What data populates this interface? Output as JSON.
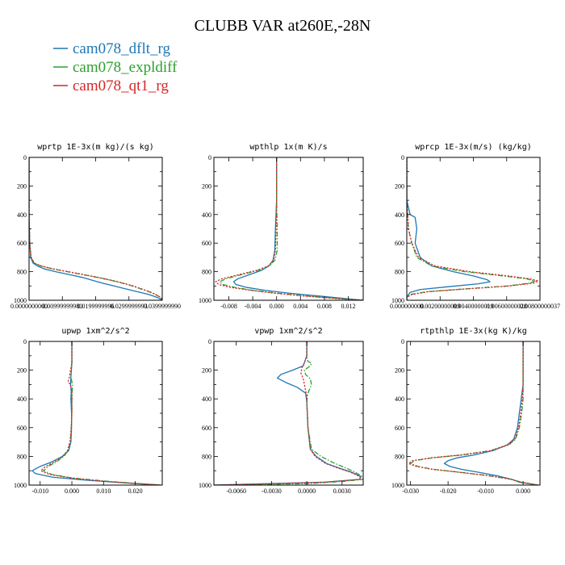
{
  "title": "CLUBB VAR at260E,-28N",
  "legend": [
    {
      "label": "cam078_dflt_rg",
      "color": "#1f77b4",
      "dash": "solid"
    },
    {
      "label": "cam078_expldiff",
      "color": "#2ca02c",
      "dash": "dashdot"
    },
    {
      "label": "cam078_qt1_rg",
      "color": "#d62728",
      "dash": "dotted"
    }
  ],
  "chart_data": [
    {
      "type": "line",
      "title": "wprtp  1E-3x(m kg)/(s kg)",
      "xlim": [
        0.0,
        0.04
      ],
      "ylim": [
        0,
        1000
      ],
      "y_inverted": true,
      "xticks": [
        0.0,
        0.01,
        0.02,
        0.03,
        0.04
      ],
      "xtick_labels": [
        "0.0000000000",
        "0.00999999980",
        "0.0199999996",
        "0.0299999993",
        "0.0399999990"
      ],
      "yticks": [
        0,
        200,
        400,
        600,
        800,
        1000
      ],
      "ytick_labels": [
        "0",
        "200",
        "400",
        "600",
        "800",
        "1000"
      ],
      "series": [
        {
          "y": [
            0,
            400,
            600,
            700,
            740,
            760,
            780,
            800,
            820,
            840,
            860,
            880,
            900,
            920,
            940,
            960,
            980,
            1000
          ],
          "x": [
            0.0,
            0.0,
            0.0002,
            0.0005,
            0.0012,
            0.0025,
            0.0045,
            0.008,
            0.012,
            0.016,
            0.019,
            0.022,
            0.0255,
            0.029,
            0.0325,
            0.036,
            0.0385,
            0.04
          ]
        },
        {
          "y": [
            0,
            400,
            600,
            700,
            740,
            760,
            780,
            800,
            820,
            840,
            860,
            880,
            900,
            920,
            940,
            960,
            980,
            1000
          ],
          "x": [
            0.0,
            0.0,
            0.0002,
            0.0006,
            0.0015,
            0.0035,
            0.007,
            0.0115,
            0.016,
            0.0205,
            0.0245,
            0.028,
            0.031,
            0.0335,
            0.036,
            0.038,
            0.0395,
            0.04
          ]
        },
        {
          "y": [
            0,
            400,
            600,
            700,
            740,
            760,
            780,
            800,
            820,
            840,
            860,
            880,
            900,
            920,
            940,
            960,
            980,
            1000
          ],
          "x": [
            0.0,
            0.0,
            0.0002,
            0.0006,
            0.0016,
            0.0037,
            0.0072,
            0.0118,
            0.0163,
            0.0208,
            0.0248,
            0.0283,
            0.0313,
            0.0338,
            0.0362,
            0.0381,
            0.0395,
            0.04
          ]
        }
      ]
    },
    {
      "type": "line",
      "title": "wpthlp  1x(m K)/s",
      "xlim": [
        -0.0105,
        0.0145
      ],
      "ylim": [
        0,
        1000
      ],
      "y_inverted": true,
      "xticks": [
        -0.008,
        -0.004,
        0.0,
        0.004,
        0.008,
        0.012
      ],
      "xtick_labels": [
        "-0.008",
        "-0.004",
        "0.000",
        "0.004",
        "0.008",
        "0.012"
      ],
      "yticks": [
        0,
        200,
        400,
        600,
        800,
        1000
      ],
      "ytick_labels": [
        "0",
        "200",
        "400",
        "600",
        "800",
        "1000"
      ],
      "series": [
        {
          "y": [
            0,
            300,
            500,
            650,
            720,
            760,
            790,
            820,
            850,
            870,
            890,
            910,
            930,
            950,
            970,
            990,
            1000
          ],
          "x": [
            0.0,
            0.0,
            -0.0002,
            -0.0003,
            -0.0006,
            -0.0013,
            -0.0025,
            -0.0045,
            -0.0065,
            -0.0072,
            -0.0068,
            -0.005,
            -0.002,
            0.002,
            0.007,
            0.012,
            0.0145
          ]
        },
        {
          "y": [
            0,
            300,
            500,
            650,
            720,
            760,
            790,
            820,
            850,
            870,
            890,
            910,
            930,
            950,
            970,
            990,
            1000
          ],
          "x": [
            0.0,
            0.0,
            0.0001,
            0.0001,
            -0.0003,
            -0.0012,
            -0.003,
            -0.0058,
            -0.0085,
            -0.0095,
            -0.009,
            -0.007,
            -0.004,
            0.0,
            0.005,
            0.011,
            0.0145
          ]
        },
        {
          "y": [
            0,
            300,
            500,
            650,
            720,
            760,
            790,
            820,
            850,
            870,
            890,
            910,
            930,
            950,
            970,
            990,
            1000
          ],
          "x": [
            0.0,
            0.0,
            -0.0001,
            -0.0002,
            -0.0005,
            -0.0014,
            -0.0033,
            -0.0062,
            -0.0092,
            -0.0102,
            -0.0097,
            -0.0077,
            -0.0045,
            -0.0005,
            0.0045,
            0.0105,
            0.0145
          ]
        }
      ]
    },
    {
      "type": "line",
      "title": "wprcp  1E-3x(m/s) (kg/kg)",
      "xlim": [
        0.0,
        0.008
      ],
      "ylim": [
        0,
        1000
      ],
      "y_inverted": true,
      "xticks": [
        0.0,
        0.002,
        0.004,
        0.006,
        0.008
      ],
      "xtick_labels": [
        "0.000000000",
        "0.00200000009",
        "0.00400000019",
        "0.00600000028",
        "0.00800000037"
      ],
      "yticks": [
        0,
        200,
        400,
        600,
        800,
        1000
      ],
      "ytick_labels": [
        "0",
        "200",
        "400",
        "600",
        "800",
        "1000"
      ],
      "series": [
        {
          "y": [
            0,
            300,
            400,
            420,
            500,
            600,
            700,
            760,
            800,
            830,
            855,
            870,
            885,
            905,
            925,
            945,
            960,
            980,
            1000
          ],
          "x": [
            0.0,
            0.0,
            0.0002,
            0.0005,
            0.0006,
            0.0005,
            0.0008,
            0.0015,
            0.0028,
            0.004,
            0.0048,
            0.005,
            0.0043,
            0.0025,
            0.0008,
            0.0002,
            0.0001,
            0.0,
            0.0
          ]
        },
        {
          "y": [
            0,
            300,
            500,
            600,
            700,
            760,
            800,
            830,
            850,
            865,
            880,
            900,
            920,
            940,
            960,
            980,
            1000
          ],
          "x": [
            0.0,
            0.0,
            0.0001,
            0.0003,
            0.0006,
            0.0015,
            0.0035,
            0.0058,
            0.0072,
            0.0077,
            0.0074,
            0.006,
            0.0035,
            0.0012,
            0.0002,
            0.0,
            0.0
          ]
        },
        {
          "y": [
            0,
            300,
            500,
            600,
            700,
            760,
            800,
            830,
            850,
            865,
            880,
            900,
            920,
            940,
            960,
            980,
            1000
          ],
          "x": [
            0.0,
            0.0,
            0.0001,
            0.0003,
            0.0007,
            0.0017,
            0.0038,
            0.0061,
            0.0074,
            0.0079,
            0.0076,
            0.0062,
            0.0037,
            0.0013,
            0.0003,
            0.0,
            0.0
          ]
        }
      ]
    },
    {
      "type": "line",
      "title": "upwp  1xm^2/s^2",
      "xlim": [
        -0.0135,
        0.0285
      ],
      "ylim": [
        0,
        1000
      ],
      "y_inverted": true,
      "xticks": [
        -0.01,
        0.0,
        0.01,
        0.02
      ],
      "xtick_labels": [
        "-0.010",
        "0.000",
        "0.010",
        "0.020"
      ],
      "yticks": [
        0,
        200,
        400,
        600,
        800,
        1000
      ],
      "ytick_labels": [
        "0",
        "200",
        "400",
        "600",
        "800",
        "1000"
      ],
      "series": [
        {
          "y": [
            0,
            150,
            250,
            300,
            350,
            400,
            450,
            500,
            600,
            700,
            760,
            800,
            840,
            870,
            900,
            920,
            945,
            965,
            985,
            1000
          ],
          "x": [
            0.0,
            0.0,
            -0.0003,
            -0.0004,
            -0.0002,
            -0.0003,
            -0.0002,
            -0.0001,
            -0.0001,
            -0.0003,
            -0.001,
            -0.003,
            -0.0065,
            -0.01,
            -0.0125,
            -0.0115,
            -0.006,
            0.004,
            0.017,
            0.028
          ]
        },
        {
          "y": [
            0,
            150,
            200,
            250,
            300,
            350,
            400,
            450,
            500,
            600,
            700,
            760,
            800,
            840,
            870,
            900,
            925,
            950,
            975,
            1000
          ],
          "x": [
            0.0,
            0.0,
            -0.0002,
            -0.0003,
            0.0002,
            0.0001,
            0.0,
            0.0,
            0.0,
            -0.0002,
            -0.0005,
            -0.0012,
            -0.0025,
            -0.005,
            -0.0075,
            -0.009,
            -0.0065,
            0.0,
            0.012,
            0.028
          ]
        },
        {
          "y": [
            0,
            150,
            250,
            280,
            300,
            350,
            400,
            450,
            500,
            600,
            700,
            760,
            800,
            840,
            870,
            900,
            925,
            950,
            975,
            1000
          ],
          "x": [
            0.0,
            0.0,
            -0.0008,
            -0.0012,
            -0.0005,
            0.0,
            0.0,
            0.0,
            0.0,
            -0.0002,
            -0.0006,
            -0.0014,
            -0.0028,
            -0.0056,
            -0.0083,
            -0.0098,
            -0.0072,
            -0.0005,
            0.011,
            0.028
          ]
        }
      ]
    },
    {
      "type": "line",
      "title": "vpwp  1xm^2/s^2",
      "xlim": [
        -0.0079,
        0.0048
      ],
      "ylim": [
        0,
        1000
      ],
      "y_inverted": true,
      "xticks": [
        -0.006,
        -0.003,
        0.0,
        0.003
      ],
      "xtick_labels": [
        "-0.0060",
        "-0.0030",
        "0.0000",
        "0.0030"
      ],
      "yticks": [
        0,
        200,
        400,
        600,
        800,
        1000
      ],
      "ytick_labels": [
        "0",
        "200",
        "400",
        "600",
        "800",
        "1000"
      ],
      "series": [
        {
          "y": [
            0,
            100,
            170,
            200,
            230,
            255,
            285,
            320,
            360,
            420,
            600,
            750,
            800,
            850,
            880,
            910,
            940,
            960,
            980,
            1000
          ],
          "x": [
            0.0,
            0.0,
            -0.0003,
            -0.0012,
            -0.0022,
            -0.0025,
            -0.0018,
            -0.0008,
            -0.0001,
            0.0,
            0.0001,
            0.0003,
            0.0008,
            0.0017,
            0.0027,
            0.0038,
            0.0046,
            0.0045,
            0.0015,
            -0.0079
          ]
        },
        {
          "y": [
            0,
            100,
            140,
            150,
            170,
            200,
            230,
            260,
            300,
            360,
            420,
            600,
            750,
            800,
            850,
            880,
            910,
            940,
            960,
            975,
            990,
            1000
          ],
          "x": [
            0.0,
            0.0,
            0.0001,
            0.0004,
            0.0003,
            -0.0002,
            -0.0001,
            0.0003,
            0.0004,
            0.0001,
            0.0,
            0.0001,
            0.0004,
            0.0012,
            0.0024,
            0.0033,
            0.0041,
            0.0047,
            0.0048,
            0.003,
            0.0,
            -0.0079
          ]
        },
        {
          "y": [
            0,
            100,
            150,
            180,
            220,
            260,
            300,
            340,
            380,
            420,
            600,
            750,
            800,
            850,
            880,
            910,
            940,
            960,
            980,
            1000
          ],
          "x": [
            0.0,
            0.0,
            -0.0002,
            -0.0004,
            -0.0005,
            -0.0003,
            -0.0002,
            -0.0001,
            0.0,
            0.0,
            0.0001,
            0.0003,
            0.0007,
            0.0016,
            0.0026,
            0.0037,
            0.0045,
            0.0046,
            0.0015,
            -0.0079
          ]
        }
      ]
    },
    {
      "type": "line",
      "title": "rtpthlp  1E-3x(kg K)/kg",
      "xlim": [
        -0.031,
        0.0045
      ],
      "ylim": [
        0,
        1000
      ],
      "y_inverted": true,
      "xticks": [
        -0.03,
        -0.02,
        -0.01,
        0.0
      ],
      "xtick_labels": [
        "-0.030",
        "-0.020",
        "-0.010",
        "0.000"
      ],
      "yticks": [
        0,
        200,
        400,
        600,
        800,
        1000
      ],
      "ytick_labels": [
        "0",
        "200",
        "400",
        "600",
        "800",
        "1000"
      ],
      "series": [
        {
          "y": [
            0,
            300,
            400,
            500,
            600,
            680,
            720,
            760,
            790,
            810,
            830,
            850,
            870,
            890,
            910,
            935,
            960,
            980,
            1000
          ],
          "x": [
            0.0,
            0.0,
            -0.0005,
            -0.001,
            -0.0015,
            -0.0025,
            -0.0042,
            -0.008,
            -0.013,
            -0.0175,
            -0.02,
            -0.021,
            -0.0195,
            -0.0165,
            -0.012,
            -0.007,
            -0.003,
            -0.001,
            0.004
          ]
        },
        {
          "y": [
            0,
            300,
            400,
            500,
            600,
            680,
            720,
            760,
            790,
            810,
            830,
            850,
            870,
            890,
            910,
            935,
            960,
            980,
            1000
          ],
          "x": [
            0.0,
            0.0,
            0.0,
            -0.0004,
            -0.001,
            -0.002,
            -0.0038,
            -0.0085,
            -0.016,
            -0.024,
            -0.029,
            -0.03,
            -0.028,
            -0.024,
            -0.017,
            -0.009,
            -0.003,
            -0.0005,
            0.004
          ]
        },
        {
          "y": [
            0,
            300,
            400,
            500,
            600,
            680,
            720,
            760,
            790,
            810,
            830,
            850,
            870,
            890,
            910,
            935,
            960,
            980,
            1000
          ],
          "x": [
            0.0,
            0.0,
            -0.0002,
            -0.0006,
            -0.0012,
            -0.0022,
            -0.004,
            -0.0088,
            -0.0165,
            -0.0245,
            -0.0295,
            -0.0305,
            -0.0285,
            -0.0243,
            -0.0173,
            -0.0092,
            -0.0032,
            -0.0006,
            0.004
          ]
        }
      ]
    }
  ]
}
